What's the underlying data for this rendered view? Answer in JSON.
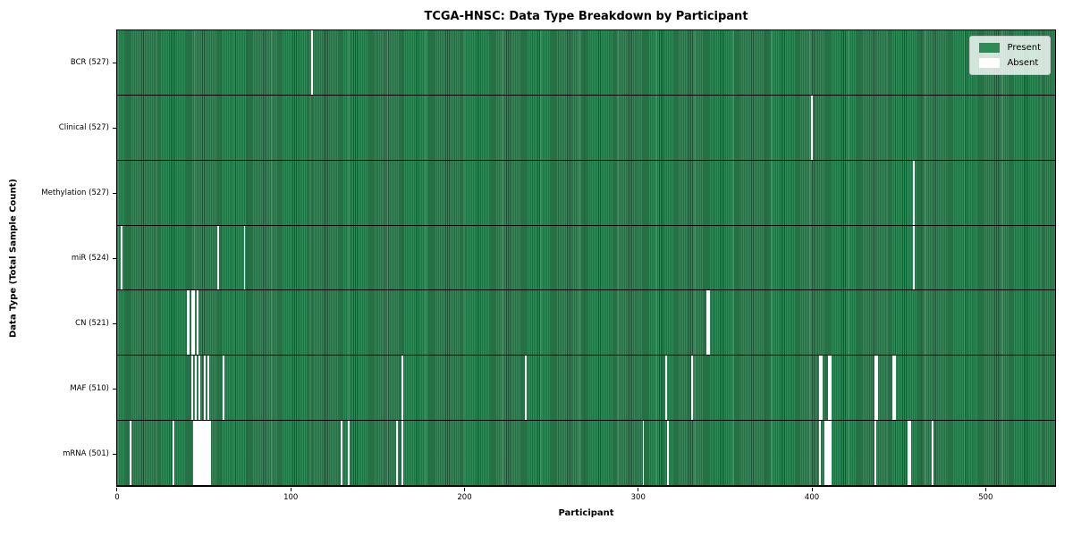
{
  "title": "TCGA-HNSC: Data Type Breakdown by Participant",
  "xlabel": "Participant",
  "ylabel": "Data Type (Total Sample Count)",
  "legend": {
    "present_label": "Present",
    "absent_label": "Absent"
  },
  "colors": {
    "present": "#2e8b57",
    "absent": "#ffffff",
    "legend_bg": "rgba(255,255,255,0.8)"
  },
  "chart_data": {
    "type": "heatmap",
    "title": "TCGA-HNSC: Data Type Breakdown by Participant",
    "xlabel": "Participant",
    "ylabel": "Data Type (Total Sample Count)",
    "x_ticks": [
      0,
      100,
      200,
      300,
      400,
      500
    ],
    "xlim": [
      0,
      541
    ],
    "grid": false,
    "legend_entries": [
      "Present",
      "Absent"
    ],
    "legend_position": "upper right",
    "cell_values": {
      "present": 1,
      "absent": 0
    },
    "rows": [
      {
        "data_type": "BCR",
        "label": "BCR (527)",
        "total_samples": 527,
        "absent_participants": [
          112
        ]
      },
      {
        "data_type": "Clinical",
        "label": "Clinical (527)",
        "total_samples": 527,
        "absent_participants": [
          400
        ]
      },
      {
        "data_type": "Methylation",
        "label": "Methylation (527)",
        "total_samples": 527,
        "absent_participants": [
          459
        ]
      },
      {
        "data_type": "miR",
        "label": "miR (524)",
        "total_samples": 524,
        "absent_participants": [
          2,
          58,
          73,
          459
        ]
      },
      {
        "data_type": "CN",
        "label": "CN (521)",
        "total_samples": 521,
        "absent_participants": [
          40,
          41,
          43,
          44,
          46,
          340,
          341
        ]
      },
      {
        "data_type": "MAF",
        "label": "MAF (510)",
        "total_samples": 510,
        "absent_participants": [
          43,
          45,
          47,
          50,
          52,
          61,
          164,
          235,
          316,
          331,
          405,
          406,
          410,
          411,
          437,
          438,
          447,
          448
        ]
      },
      {
        "data_type": "mRNA",
        "label": "mRNA (501)",
        "total_samples": 501,
        "absent_participants": [
          7,
          32,
          44,
          45,
          46,
          47,
          48,
          49,
          50,
          51,
          52,
          53,
          129,
          133,
          161,
          164,
          303,
          317,
          405,
          408,
          409,
          410,
          411,
          437,
          456,
          457,
          470
        ]
      }
    ]
  }
}
